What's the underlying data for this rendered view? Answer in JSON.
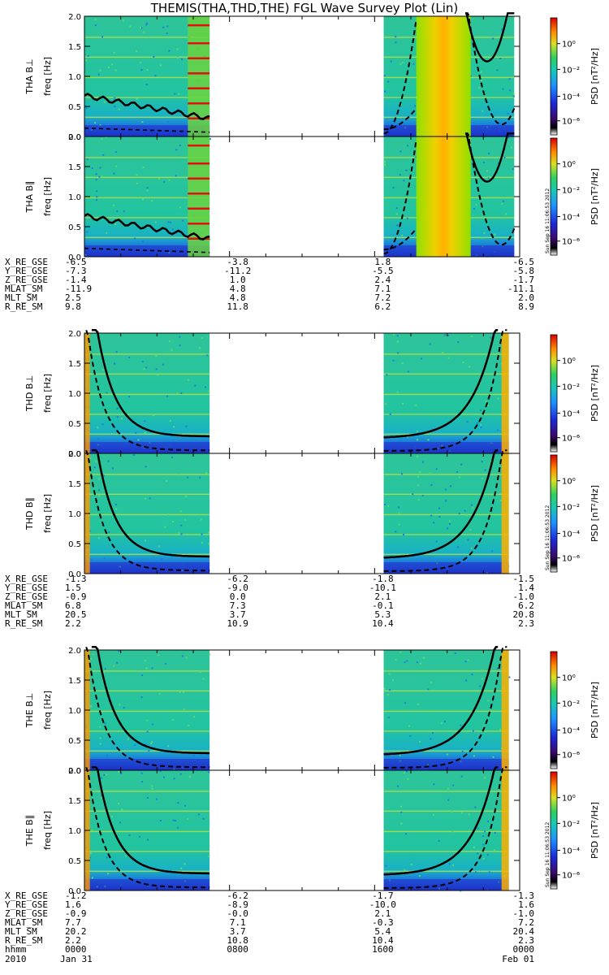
{
  "title": "THEMIS(THA,THD,THE) FGL Wave Survey Plot (Lin)",
  "stamp": "Sun Sep 16 11:06:53 2012",
  "colorbar": {
    "label": "PSD [nT²/Hz]",
    "ticks": [
      "10⁰",
      "10⁻²",
      "10⁻⁴",
      "10⁻⁶"
    ]
  },
  "freq_ticks": [
    "2.0",
    "1.5",
    "1.0",
    "0.5",
    "0.0"
  ],
  "chart_data": {
    "type": "heatmap",
    "xlabel": "hhmm",
    "time_ticks": [
      "0000",
      "0800",
      "1600",
      "0000"
    ],
    "date_labels": [
      "2010",
      "Jan 31",
      "Feb 01"
    ],
    "ylim": [
      0,
      2.0
    ],
    "panels": [
      {
        "probe": "THA",
        "component": "B⊥",
        "ylabel": "THA B⊥",
        "freq_label": "freq [Hz]"
      },
      {
        "probe": "THA",
        "component": "B∥",
        "ylabel": "THA B∥",
        "freq_label": "freq [Hz]"
      },
      {
        "probe": "THD",
        "component": "B⊥",
        "ylabel": "THD B⊥",
        "freq_label": "freq [Hz]"
      },
      {
        "probe": "THD",
        "component": "B∥",
        "ylabel": "THD B∥",
        "freq_label": "freq [Hz]"
      },
      {
        "probe": "THE",
        "component": "B⊥",
        "ylabel": "THE B⊥",
        "freq_label": "freq [Hz]"
      },
      {
        "probe": "THE",
        "component": "B∥",
        "ylabel": "THE B∥",
        "freq_label": "freq [Hz]"
      }
    ],
    "ephemeris": [
      {
        "probe": "THA",
        "rows": [
          {
            "name": "X_RE_GSE",
            "values": [
              "-6.5",
              "-3.8",
              "1.8",
              "-6.5"
            ]
          },
          {
            "name": "Y_RE_GSE",
            "values": [
              "-7.3",
              "-11.2",
              "-5.5",
              "-5.8"
            ]
          },
          {
            "name": "Z_RE_GSE",
            "values": [
              "-1.4",
              "1.0",
              "2.4",
              "-1.7"
            ]
          },
          {
            "name": "MLAT_SM",
            "values": [
              "-11.9",
              "4.8",
              "7.1",
              "-11.1"
            ]
          },
          {
            "name": "MLT_SM",
            "values": [
              "2.5",
              "4.8",
              "7.2",
              "2.0"
            ]
          },
          {
            "name": "R_RE_SM",
            "values": [
              "9.8",
              "11.8",
              "6.2",
              "8.9"
            ]
          }
        ]
      },
      {
        "probe": "THD",
        "rows": [
          {
            "name": "X_RE_GSE",
            "values": [
              "-1.3",
              "-6.2",
              "-1.8",
              "-1.5"
            ]
          },
          {
            "name": "Y_RE_GSE",
            "values": [
              "1.5",
              "-9.0",
              "-10.1",
              "1.4"
            ]
          },
          {
            "name": "Z_RE_GSE",
            "values": [
              "-0.9",
              "0.0",
              "2.1",
              "-1.0"
            ]
          },
          {
            "name": "MLAT_SM",
            "values": [
              "6.8",
              "7.3",
              "-0.1",
              "6.2"
            ]
          },
          {
            "name": "MLT_SM",
            "values": [
              "20.5",
              "3.7",
              "5.3",
              "20.8"
            ]
          },
          {
            "name": "R_RE_SM",
            "values": [
              "2.2",
              "10.9",
              "10.4",
              "2.3"
            ]
          }
        ]
      },
      {
        "probe": "THE",
        "rows": [
          {
            "name": "X_RE_GSE",
            "values": [
              "-1.2",
              "-6.2",
              "-1.7",
              "-1.3"
            ]
          },
          {
            "name": "Y_RE_GSE",
            "values": [
              "1.6",
              "-8.9",
              "-10.0",
              "1.6"
            ]
          },
          {
            "name": "Z_RE_GSE",
            "values": [
              "-0.9",
              "-0.0",
              "2.1",
              "-1.0"
            ]
          },
          {
            "name": "MLAT_SM",
            "values": [
              "7.7",
              "7.1",
              "-0.3",
              "7.2"
            ]
          },
          {
            "name": "MLT_SM",
            "values": [
              "20.2",
              "3.7",
              "5.4",
              "20.4"
            ]
          },
          {
            "name": "R_RE_SM",
            "values": [
              "2.2",
              "10.8",
              "10.4",
              "2.3"
            ]
          }
        ]
      }
    ]
  }
}
